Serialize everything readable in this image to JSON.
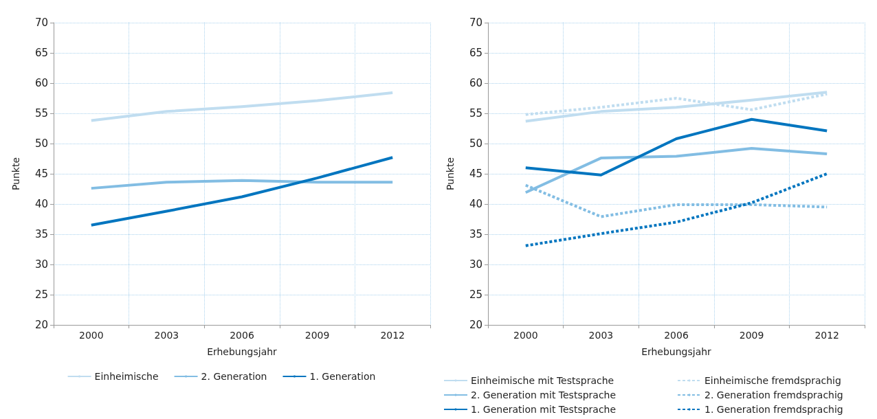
{
  "chart_data": [
    {
      "type": "line",
      "xlabel": "Erhebungsjahr",
      "ylabel": "Punkte",
      "categories": [
        "2000",
        "2003",
        "2006",
        "2009",
        "2012"
      ],
      "ylim": [
        20,
        70
      ],
      "yticks": [
        20,
        25,
        30,
        35,
        40,
        45,
        50,
        55,
        60,
        65,
        70
      ],
      "grid": true,
      "legend": "bottom",
      "line_style": "solid",
      "marker": "none",
      "series": [
        {
          "name": "Einheimische",
          "color": "#c0ddf0",
          "values": [
            53.8,
            55.3,
            56.1,
            57.1,
            58.4
          ]
        },
        {
          "name": "2. Generation",
          "color": "#82bde3",
          "values": [
            42.6,
            43.6,
            43.9,
            43.6,
            43.6
          ]
        },
        {
          "name": "1. Generation",
          "color": "#0075bf",
          "values": [
            36.5,
            38.8,
            41.2,
            44.3,
            47.7
          ]
        }
      ]
    },
    {
      "type": "line",
      "xlabel": "Erhebungsjahr",
      "ylabel": "Punkte",
      "categories": [
        "2000",
        "2003",
        "2006",
        "2009",
        "2012"
      ],
      "ylim": [
        20,
        70
      ],
      "yticks": [
        20,
        25,
        30,
        35,
        40,
        45,
        50,
        55,
        60,
        65,
        70
      ],
      "grid": true,
      "legend": "bottom",
      "line_style": "solid",
      "marker": "none",
      "series": [
        {
          "name": "Einheimische mit Testsprache",
          "color": "#c0ddf0",
          "values": [
            53.7,
            55.3,
            56.0,
            57.2,
            58.5
          ]
        },
        {
          "name": "2. Generation mit Testsprache",
          "color": "#82bde3",
          "values": [
            41.9,
            47.6,
            47.9,
            49.2,
            48.3
          ]
        },
        {
          "name": "1. Generation mit Testsprache",
          "color": "#0075bf",
          "values": [
            46.0,
            44.8,
            50.8,
            54.0,
            52.1
          ]
        },
        {
          "name": "Einheimische fremdsprachig",
          "color": "#c0ddf0",
          "line_style": "dashed",
          "values": [
            54.8,
            56.0,
            57.5,
            55.6,
            58.2
          ]
        },
        {
          "name": "2. Generation fremdsprachig",
          "color": "#82bde3",
          "line_style": "dashed",
          "values": [
            43.1,
            37.9,
            39.9,
            39.9,
            39.5
          ]
        },
        {
          "name": "1. Generation fremdsprachig",
          "color": "#0075bf",
          "line_style": "dashed",
          "values": [
            33.1,
            35.1,
            37.0,
            40.2,
            45.0
          ]
        }
      ]
    }
  ]
}
